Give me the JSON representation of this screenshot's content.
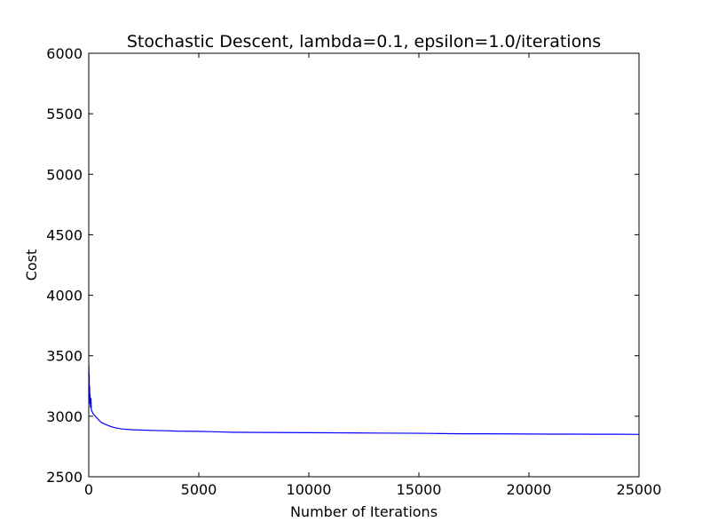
{
  "chart_data": {
    "type": "line",
    "title": "Stochastic Descent, lambda=0.1, epsilon=1.0/iterations",
    "xlabel": "Number of Iterations",
    "ylabel": "Cost",
    "xlim": [
      0,
      25000
    ],
    "ylim": [
      2500,
      6000
    ],
    "xticks": [
      0,
      5000,
      10000,
      15000,
      20000,
      25000
    ],
    "yticks": [
      2500,
      3000,
      3500,
      4000,
      4500,
      5000,
      5500,
      6000
    ],
    "grid": false,
    "line_color": "#0000ff",
    "series": [
      {
        "x": [
          0,
          5,
          10,
          15,
          20,
          30,
          40,
          50,
          60,
          80,
          100,
          120,
          150,
          200,
          250,
          300,
          400,
          500,
          600,
          800,
          1000,
          1200,
          1500,
          2000,
          2500,
          3000,
          3500,
          4000,
          5000,
          5500,
          6000,
          6500,
          7000,
          8000,
          9000,
          10000,
          11000,
          12000,
          13000,
          14000,
          15000,
          15500,
          16000,
          16500,
          17000,
          18000,
          19000,
          20000,
          21000,
          22000,
          23000,
          24000,
          25000
        ],
        "y": [
          3350,
          3420,
          3300,
          3200,
          3350,
          3150,
          3250,
          3100,
          3180,
          3070,
          3150,
          3050,
          3040,
          3020,
          3010,
          3000,
          2980,
          2960,
          2945,
          2930,
          2915,
          2905,
          2895,
          2888,
          2885,
          2882,
          2880,
          2877,
          2875,
          2873,
          2870,
          2868,
          2867,
          2866,
          2865,
          2864,
          2863,
          2862,
          2861,
          2860,
          2859,
          2858,
          2857,
          2856,
          2855,
          2855,
          2854,
          2853,
          2852,
          2852,
          2851,
          2851,
          2850
        ]
      }
    ]
  }
}
